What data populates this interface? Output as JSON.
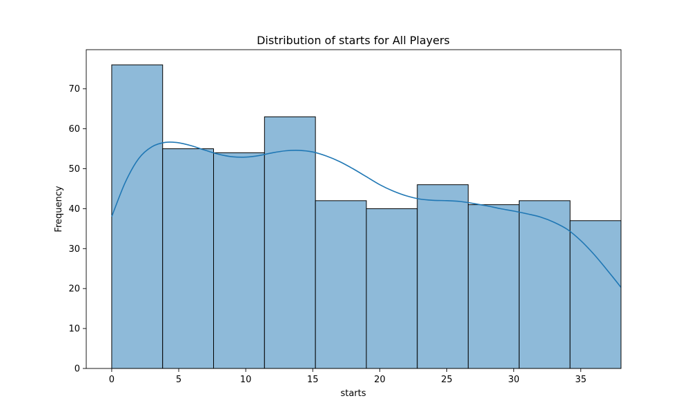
{
  "chart_data": {
    "type": "bar",
    "title": "Distribution of starts for All Players",
    "xlabel": "starts",
    "ylabel": "Frequency",
    "xlim": [
      -1.9,
      38.0
    ],
    "ylim": [
      0,
      79.8
    ],
    "xticks": [
      0,
      5,
      10,
      15,
      20,
      25,
      30,
      35
    ],
    "yticks": [
      0,
      10,
      20,
      30,
      40,
      50,
      60,
      70
    ],
    "grid": false,
    "bins": [
      {
        "x0": 0.0,
        "x1": 3.8,
        "count": 76
      },
      {
        "x0": 3.8,
        "x1": 7.6,
        "count": 55
      },
      {
        "x0": 7.6,
        "x1": 11.4,
        "count": 54
      },
      {
        "x0": 11.4,
        "x1": 15.2,
        "count": 63
      },
      {
        "x0": 15.2,
        "x1": 19.0,
        "count": 42
      },
      {
        "x0": 19.0,
        "x1": 22.8,
        "count": 40
      },
      {
        "x0": 22.8,
        "x1": 26.6,
        "count": 46
      },
      {
        "x0": 26.6,
        "x1": 30.4,
        "count": 41
      },
      {
        "x0": 30.4,
        "x1": 34.2,
        "count": 42
      },
      {
        "x0": 34.2,
        "x1": 38.0,
        "count": 37
      }
    ],
    "kde": {
      "x": [
        0,
        1,
        2,
        3,
        4,
        5,
        6,
        7,
        8,
        9,
        10,
        11,
        12,
        13,
        14,
        15,
        16,
        17,
        18,
        19,
        20,
        21,
        22,
        23,
        24,
        25,
        26,
        27,
        28,
        29,
        30,
        31,
        32,
        33,
        34,
        35,
        36,
        37,
        38
      ],
      "y": [
        38,
        46.5,
        52.5,
        55.5,
        56.6,
        56.5,
        55.7,
        54.6,
        53.6,
        53.0,
        52.9,
        53.3,
        54.0,
        54.5,
        54.6,
        54.2,
        53.2,
        51.8,
        50.0,
        48.0,
        46.0,
        44.4,
        43.2,
        42.4,
        42.1,
        42.0,
        41.8,
        41.3,
        40.7,
        40.0,
        39.4,
        38.7,
        37.9,
        36.6,
        34.8,
        32.0,
        28.5,
        24.5,
        20.3
      ]
    },
    "colors": {
      "bar_fill": "#8ebad9",
      "bar_edge": "#000000",
      "kde_line": "#1f77b4"
    }
  }
}
